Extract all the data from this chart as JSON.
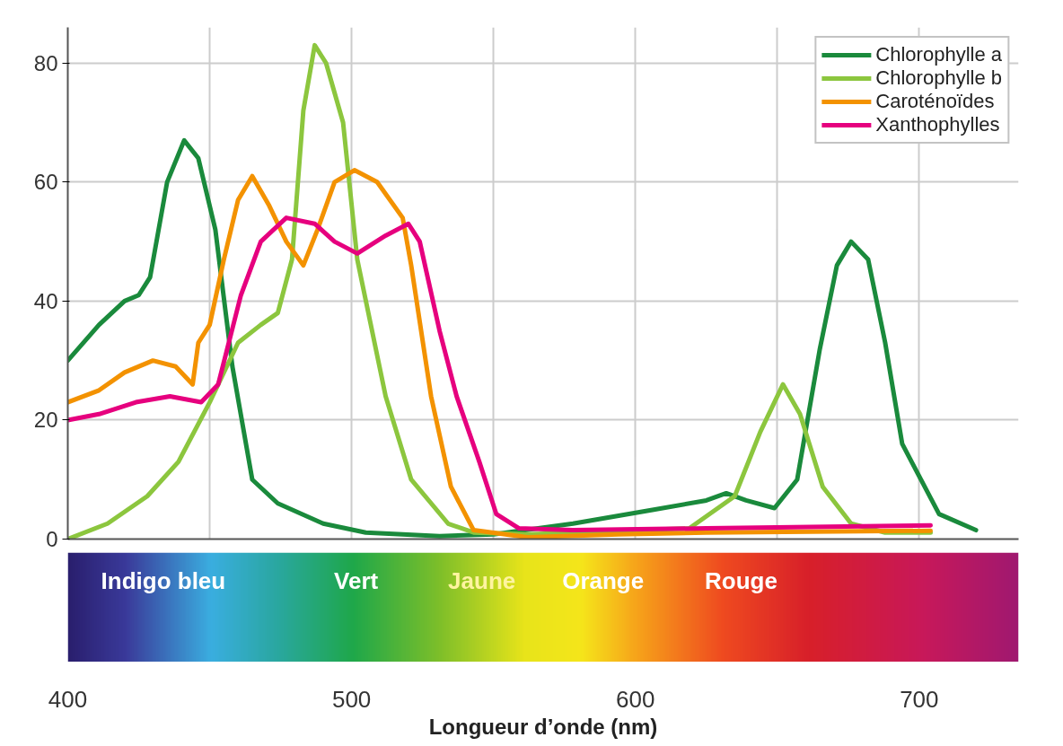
{
  "chart_data": {
    "type": "line",
    "xlabel": "Longueur d’onde (nm)",
    "xlim": [
      400,
      735
    ],
    "ylim": [
      0,
      86
    ],
    "xticks": [
      400,
      {
        "value": 450,
        "label": null
      },
      500,
      {
        "value": 550,
        "label": null
      },
      600,
      {
        "value": 650,
        "label": null
      },
      700
    ],
    "yticks": [
      0,
      20,
      40,
      60,
      80
    ],
    "grid": true,
    "legend": "top right",
    "line_style": "solid",
    "marker": "none",
    "annotations": [
      "Indigo  bleu",
      "Vert",
      "Jaune",
      "Orange",
      "Rouge"
    ],
    "series": [
      {
        "name": "Chlorophylle a",
        "color": "#1a8a3c",
        "x": [
          400,
          411,
          420,
          425,
          429,
          435,
          441,
          446,
          452,
          458,
          465,
          474,
          490,
          505,
          531,
          550,
          578,
          606,
          625,
          632,
          639,
          649,
          657,
          665,
          671,
          676,
          682,
          688,
          694,
          707,
          720
        ],
        "values": [
          30,
          36,
          40,
          41,
          44,
          60,
          67,
          64,
          52,
          29,
          10,
          6,
          2.6,
          1.1,
          0.5,
          0.8,
          2.6,
          4.9,
          6.5,
          7.7,
          6.5,
          5.2,
          10,
          32,
          46,
          50,
          47,
          33,
          16,
          4.2,
          1.5
        ]
      },
      {
        "name": "Chlorophylle b",
        "color": "#8cc63e",
        "x": [
          400,
          414,
          428,
          439,
          450,
          460,
          468,
          474,
          479,
          483,
          487,
          491,
          497,
          502,
          512,
          521,
          534,
          543,
          562,
          594,
          619,
          635,
          644,
          652,
          658,
          666,
          676,
          688,
          704
        ],
        "values": [
          0,
          2.6,
          7.2,
          13,
          23,
          33,
          36,
          38,
          47,
          72,
          83,
          80,
          70,
          47,
          24,
          10,
          2.6,
          1.1,
          0.8,
          1.4,
          1.8,
          7.2,
          18,
          26,
          21,
          8.8,
          2.6,
          1.1,
          1.1
        ]
      },
      {
        "name": "Caroténoïdes",
        "color": "#f39200",
        "x": [
          400,
          411,
          420,
          430,
          438,
          444,
          446,
          450,
          455,
          460,
          465,
          471,
          477,
          483,
          488,
          494,
          501,
          509,
          518,
          521,
          528,
          535,
          543,
          562,
          594,
          625,
          704
        ],
        "values": [
          23,
          25,
          28,
          30,
          29,
          26,
          33,
          36,
          47,
          57,
          61,
          56,
          50,
          46,
          52,
          60,
          62,
          60,
          54,
          46,
          24,
          8.8,
          1.5,
          0.3,
          0.8,
          1.1,
          1.4
        ]
      },
      {
        "name": "Xanthophylles",
        "color": "#e6007e",
        "x": [
          400,
          411,
          424,
          436,
          447,
          453,
          461,
          468,
          477,
          487,
          494,
          502,
          512,
          520,
          524,
          531,
          537,
          545,
          551,
          559,
          578,
          625,
          704
        ],
        "values": [
          20,
          21,
          23,
          24,
          23,
          26,
          41,
          50,
          54,
          53,
          50,
          48,
          51,
          53,
          50,
          35,
          24,
          13,
          4.2,
          1.8,
          1.5,
          1.8,
          2.3
        ]
      }
    ]
  }
}
